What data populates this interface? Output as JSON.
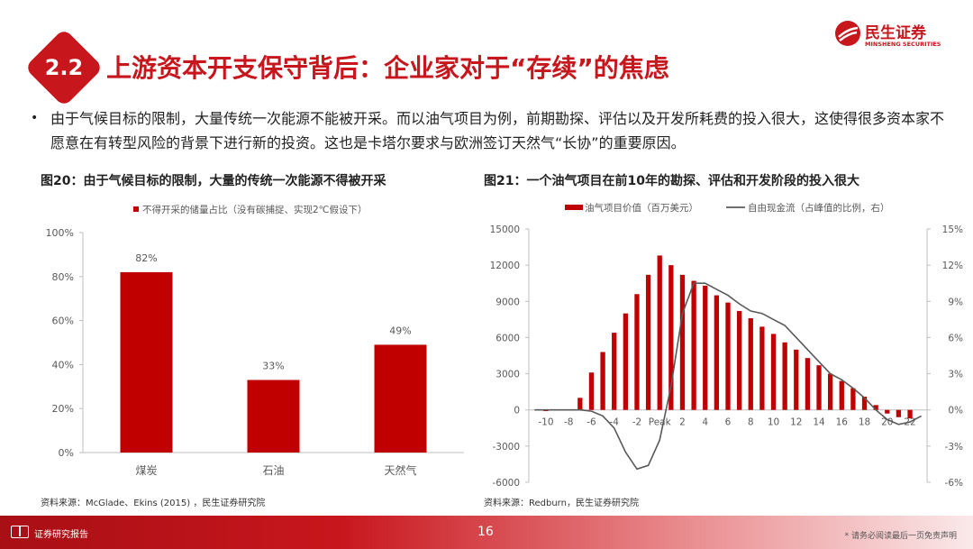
{
  "header": {
    "section_number": "2.2",
    "title": "上游资本开支保守背后：企业家对于“存续”的焦虑",
    "brand_cn": "民生证券",
    "brand_en": "MINSHENG SECURITIES"
  },
  "bullet": {
    "marker": "•",
    "text": "由于气候目标的限制，大量传统一次能源不能被开采。而以油气项目为例，前期勘探、评估以及开发所耗费的投入很大，这使得很多资本家不愿意在有转型风险的背景下进行新的投资。这也是卡塔尔要求与欧洲签订天然气“长协”的重要原因。"
  },
  "figures": {
    "left": {
      "title": "图20：由于气候目标的限制，大量的传统一次能源不得被开采",
      "source": "资料来源：McGlade、Ekins (2015) ，民生证券研究院"
    },
    "right": {
      "title": "图21：一个油气项目在前10年的勘探、评估和开发阶段的投入很大",
      "source": "资料来源：Redburn，民生证券研究院"
    }
  },
  "colors": {
    "brand": "#c8161d",
    "bar": "#c00000",
    "line": "#595959",
    "axis": "#bfbfbf",
    "text": "#595959"
  },
  "chart_data": [
    {
      "type": "bar",
      "series": [
        {
          "name": "不得开采的储量占比（没有碳捕捉、实现2℃假设下）",
          "values": [
            82,
            33,
            49
          ]
        }
      ],
      "categories": [
        "煤炭",
        "石油",
        "天然气"
      ],
      "data_labels": [
        "82%",
        "33%",
        "49%"
      ],
      "ylim": [
        0,
        100
      ],
      "yticks": [
        "0%",
        "20%",
        "40%",
        "60%",
        "80%",
        "100%"
      ],
      "legend": "top",
      "grid": false
    },
    {
      "type": "bar+line",
      "x": [
        -11,
        -10,
        -9,
        -8,
        -7,
        -6,
        -5,
        -4,
        -3,
        -2,
        -1,
        "Peak",
        1,
        2,
        3,
        4,
        5,
        6,
        7,
        8,
        9,
        10,
        11,
        12,
        13,
        14,
        15,
        16,
        17,
        18,
        19,
        20,
        21,
        22,
        23
      ],
      "xtick_labels": [
        "-10",
        "-8",
        "-6",
        "-4",
        "-2",
        "Peak",
        "2",
        "4",
        "6",
        "8",
        "10",
        "12",
        "14",
        "16",
        "18",
        "20",
        "22"
      ],
      "series": [
        {
          "name": "油气项目价值（百万美元）",
          "type": "bar",
          "axis": "left",
          "values": [
            0,
            -100,
            0,
            0,
            1000,
            3100,
            4800,
            6400,
            8000,
            9600,
            11200,
            12800,
            12000,
            11200,
            10700,
            10300,
            9500,
            8900,
            8200,
            7600,
            6900,
            6300,
            5600,
            5000,
            4300,
            3700,
            3000,
            2400,
            1800,
            1100,
            400,
            -300,
            -600,
            -700,
            0
          ]
        },
        {
          "name": "自由现金流（占峰值的比例，右）",
          "type": "line",
          "axis": "right",
          "values": [
            0,
            0,
            0,
            0,
            0,
            -0.1,
            -0.5,
            -1.5,
            -3.5,
            -4.9,
            -4.6,
            -2.5,
            2.0,
            8.0,
            10.5,
            10.5,
            10.0,
            9.5,
            8.8,
            8.2,
            8.0,
            7.5,
            7.0,
            6.0,
            5.0,
            4.0,
            3.0,
            2.5,
            1.8,
            1.0,
            0.0,
            -0.8,
            -1.2,
            -1.0,
            -0.5
          ]
        }
      ],
      "ylim_left": [
        -6000,
        15000
      ],
      "yticks_left": [
        "-6000",
        "-3000",
        "0",
        "3000",
        "6000",
        "9000",
        "12000",
        "15000"
      ],
      "ylim_right": [
        -6,
        15
      ],
      "yticks_right": [
        "-6%",
        "-3%",
        "0%",
        "3%",
        "6%",
        "9%",
        "12%",
        "15%"
      ],
      "legend": "top",
      "grid": false
    }
  ],
  "footer": {
    "label": "证券研究报告",
    "page": "16",
    "disclaimer": "* 请务必阅读最后一页免责声明"
  }
}
